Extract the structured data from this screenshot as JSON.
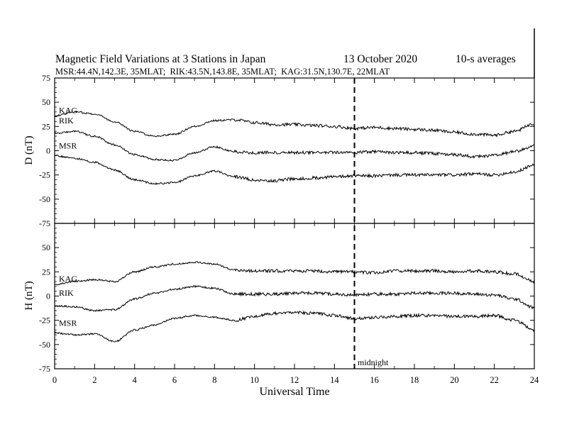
{
  "header": {
    "title": "Magnetic Field Variations at 3 Stations in Japan",
    "date": "13 October 2020",
    "averaging": "10-s averages",
    "stations_line": "MSR:44.4N,142.3E, 35MLAT;  RIK:43.5N,143.8E, 35MLAT;  KAG:31.5N,130.7E, 22MLAT"
  },
  "chart_data": [
    {
      "type": "line",
      "panel": "D",
      "ylabel": "D (nT)",
      "ylim": [
        -75,
        75
      ],
      "yticks": [
        -75,
        -50,
        -25,
        0,
        25,
        50,
        75
      ],
      "xlim": [
        0,
        24
      ],
      "series": [
        {
          "name": "KAG",
          "x": [
            0,
            1,
            2,
            3,
            4,
            5,
            6,
            7,
            8,
            9,
            10,
            11,
            12,
            13,
            14,
            15,
            16,
            17,
            18,
            19,
            20,
            21,
            22,
            23,
            24
          ],
          "values": [
            36,
            40,
            38,
            30,
            20,
            15,
            17,
            25,
            31,
            32,
            29,
            27,
            27,
            26,
            25,
            23,
            24,
            23,
            22,
            21,
            19,
            17,
            16,
            20,
            28
          ]
        },
        {
          "name": "RIK",
          "x": [
            0,
            1,
            2,
            3,
            4,
            5,
            6,
            7,
            8,
            9,
            10,
            11,
            12,
            13,
            14,
            15,
            16,
            17,
            18,
            19,
            20,
            21,
            22,
            23,
            24
          ],
          "values": [
            18,
            20,
            15,
            6,
            -4,
            -9,
            -10,
            -2,
            4,
            -1,
            -2,
            -2,
            -2,
            -2,
            -2,
            -2,
            -1,
            -2,
            -2,
            -3,
            -4,
            -6,
            -5,
            -1,
            5
          ]
        },
        {
          "name": "MSR",
          "x": [
            0,
            1,
            2,
            3,
            4,
            5,
            6,
            7,
            8,
            9,
            10,
            11,
            12,
            13,
            14,
            15,
            16,
            17,
            18,
            19,
            20,
            21,
            22,
            23,
            24
          ],
          "values": [
            -5,
            -8,
            -12,
            -20,
            -30,
            -34,
            -33,
            -26,
            -21,
            -27,
            -30,
            -31,
            -29,
            -28,
            -27,
            -26,
            -26,
            -25,
            -25,
            -25,
            -25,
            -24,
            -25,
            -22,
            -15
          ]
        }
      ],
      "vertical_marker": {
        "x": 15,
        "label": ""
      }
    },
    {
      "type": "line",
      "panel": "H",
      "ylabel": "H (nT)",
      "ylim": [
        -75,
        75
      ],
      "yticks": [
        -75,
        -50,
        -25,
        0,
        25,
        50,
        75
      ],
      "xlim": [
        0,
        24
      ],
      "xlabel": "Universal Time",
      "xticks": [
        0,
        2,
        4,
        6,
        8,
        10,
        12,
        14,
        16,
        18,
        20,
        22,
        24
      ],
      "series": [
        {
          "name": "KAG",
          "x": [
            0,
            1,
            2,
            3,
            4,
            5,
            6,
            7,
            8,
            9,
            10,
            11,
            12,
            13,
            14,
            15,
            16,
            17,
            18,
            19,
            20,
            21,
            22,
            23,
            24
          ],
          "values": [
            12,
            15,
            17,
            15,
            25,
            30,
            33,
            35,
            33,
            27,
            26,
            26,
            26,
            26,
            25,
            25,
            24,
            26,
            26,
            26,
            25,
            26,
            25,
            23,
            15
          ]
        },
        {
          "name": "RIK",
          "x": [
            0,
            1,
            2,
            3,
            4,
            5,
            6,
            7,
            8,
            9,
            10,
            11,
            12,
            13,
            14,
            15,
            16,
            17,
            18,
            19,
            20,
            21,
            22,
            23,
            24
          ],
          "values": [
            -10,
            -11,
            -15,
            -14,
            -3,
            3,
            7,
            10,
            8,
            2,
            2,
            2,
            3,
            3,
            2,
            1,
            2,
            2,
            3,
            3,
            3,
            2,
            1,
            -3,
            -12
          ]
        },
        {
          "name": "MSR",
          "x": [
            0,
            1,
            2,
            3,
            4,
            5,
            6,
            7,
            8,
            9,
            10,
            11,
            12,
            13,
            14,
            15,
            16,
            17,
            18,
            19,
            20,
            21,
            22,
            23,
            24
          ],
          "values": [
            -38,
            -40,
            -39,
            -47,
            -35,
            -30,
            -23,
            -20,
            -22,
            -25,
            -21,
            -18,
            -17,
            -18,
            -20,
            -23,
            -22,
            -21,
            -20,
            -20,
            -21,
            -21,
            -20,
            -25,
            -35
          ]
        }
      ],
      "vertical_marker": {
        "x": 15,
        "label": "midnight"
      }
    }
  ]
}
